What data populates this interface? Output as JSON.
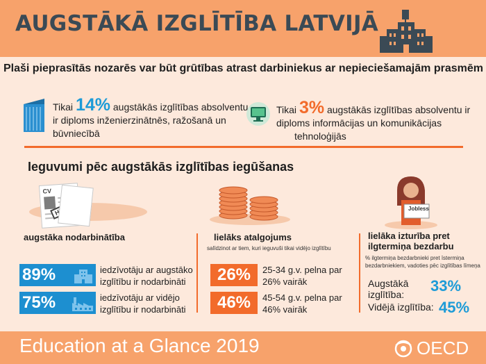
{
  "header": {
    "title": "AUGSTĀKĀ IZGLĪTĪBA LATVIJĀ",
    "icon": "university-building-icon"
  },
  "subtitle": "Plaši pieprasītās nozarēs var būt grūtības atrast darbiniekus ar nepieciešamajām prasmēm",
  "top_stats": [
    {
      "icon": "skyscraper-icon",
      "prefix": "Tikai",
      "value": "14%",
      "line1": "augstākās izglītības absolventu",
      "line2": "ir diploms inženierzinātnēs, ražošanā un",
      "line3": "būvniecībā"
    },
    {
      "icon": "computer-monitor-icon",
      "prefix": "Tikai",
      "value": "3%",
      "line1": "augstākās izglītības absolventu ir",
      "line2": "diploms informācijas un komunikācijas",
      "line3": "tehnoloģijās"
    }
  ],
  "section_title": "Ieguvumi pēc augstākās izglītības iegūšanas",
  "employment": {
    "icon": "cv-hired-icon",
    "cv_label": "CV",
    "stamp_label": "Hired",
    "heading": "augstāka nodarbinātība",
    "rows": [
      {
        "value": "89%",
        "line1": "iedzīvotāju ar augstāko",
        "line2": "izglītību ir nodarbināti",
        "icon": "office-building-icon"
      },
      {
        "value": "75%",
        "line1": "iedzīvotāju ar vidējo",
        "line2": "izglītību ir nodarbināti",
        "icon": "factory-icon"
      }
    ]
  },
  "earnings": {
    "icon": "coin-stacks-icon",
    "heading": "lielāks atalgojums",
    "note": "salīdzinot ar tiem, kuri ieguvuši tikai vidējo izglītību",
    "rows": [
      {
        "value": "26%",
        "line1": "25-34 g.v. pelna par",
        "line2": "26% vairāk"
      },
      {
        "value": "46%",
        "line1": "45-54 g.v. pelna par",
        "line2": "46% vairāk"
      }
    ]
  },
  "unemployment": {
    "icon": "jobless-person-icon",
    "sign_label": "Jobless",
    "heading_line1": "lielāka izturība pret",
    "heading_line2": "ilgtermiņa bezdarbu",
    "note": "% ilgtermiņa bezdarbnieki pret īstermiņa bezdarbniekiem, vadoties pēc izglītības līmeņa",
    "rows": [
      {
        "label_line1": "Augstākā",
        "label_line2": "izglītība:",
        "value": "33%"
      },
      {
        "label": "Vidējā izglītība:",
        "value": "45%"
      }
    ]
  },
  "footer": {
    "text": "Education at a Glance 2019",
    "logo_text": "OECD",
    "logo_icon": "oecd-logo-icon"
  },
  "colors": {
    "header_bg": "#f7a26b",
    "page_bg": "#fde9dc",
    "accent_orange": "#f26b2b",
    "accent_blue": "#1d8fd0",
    "title_text": "#3b4a55"
  }
}
